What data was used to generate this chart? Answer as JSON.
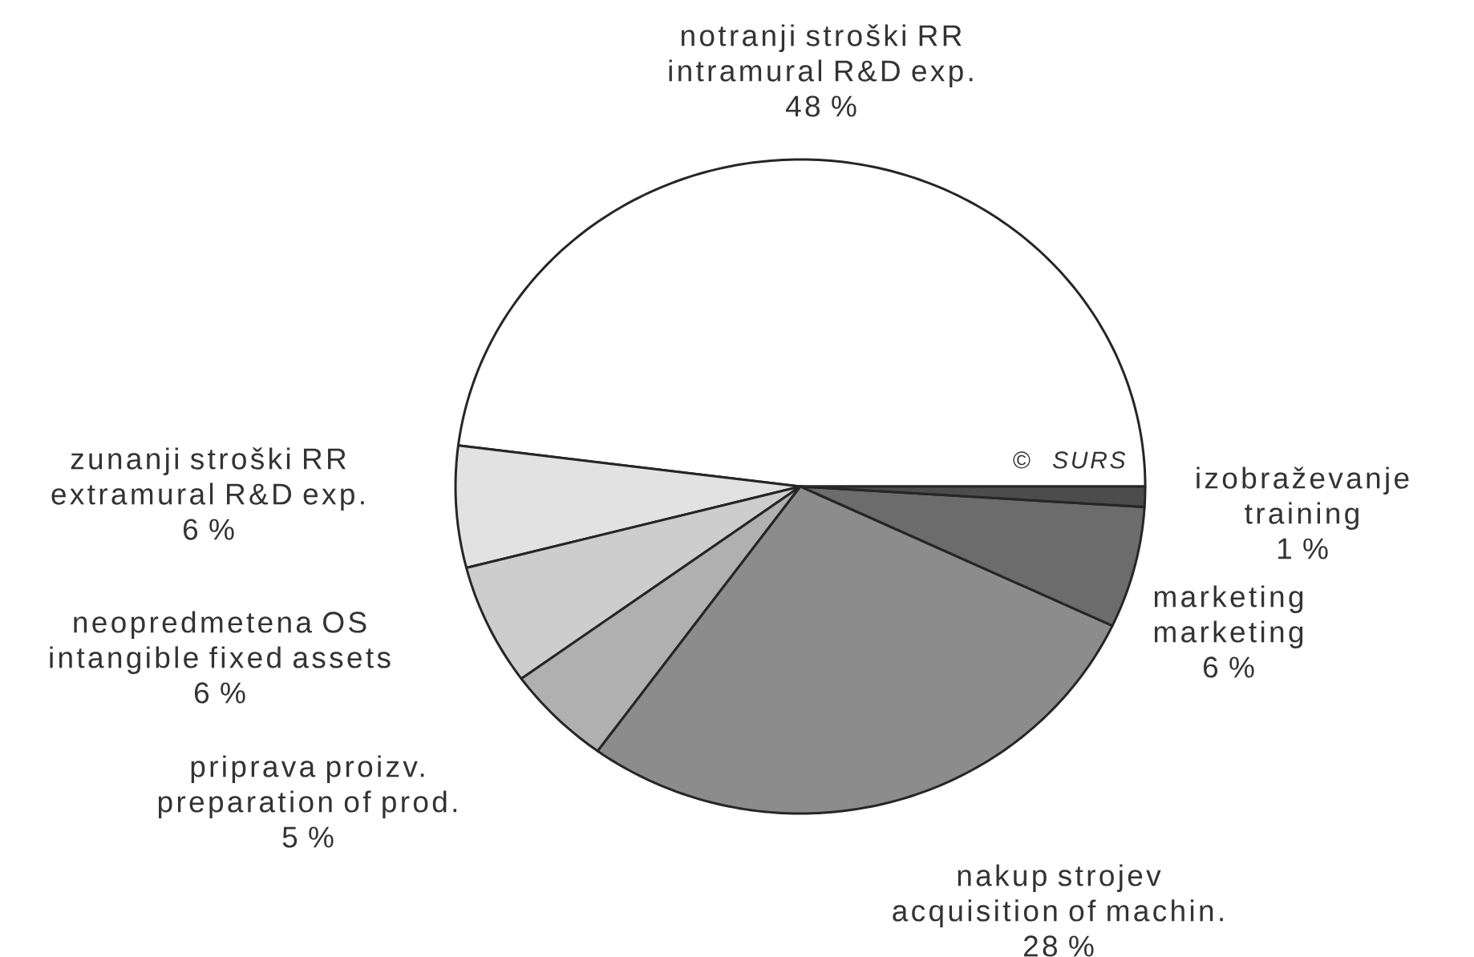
{
  "chart_data": {
    "type": "pie",
    "categories": [
      "notranji stroški RR\nintramural R&D exp.",
      "zunanji stroški RR\nextramural R&D exp.",
      "neopredmetena OS\nintangible fixed assets",
      "priprava proizv.\npreparation of prod.",
      "nakup strojev\nacquisition of machin.",
      "marketing\nmarketing",
      "izobraževanje\ntraining"
    ],
    "values": [
      48,
      6,
      6,
      5,
      28,
      6,
      1
    ],
    "value_labels": [
      "48 %",
      "6 %",
      "6 %",
      "5 %",
      "28 %",
      "6 %",
      "1 %"
    ],
    "colors": [
      "#ffffff",
      "#e2e2e2",
      "#cdcdcd",
      "#b0b0b0",
      "#8c8c8c",
      "#6c6c6c",
      "#4c4c4c"
    ],
    "annotations": [
      "© SURS"
    ]
  }
}
